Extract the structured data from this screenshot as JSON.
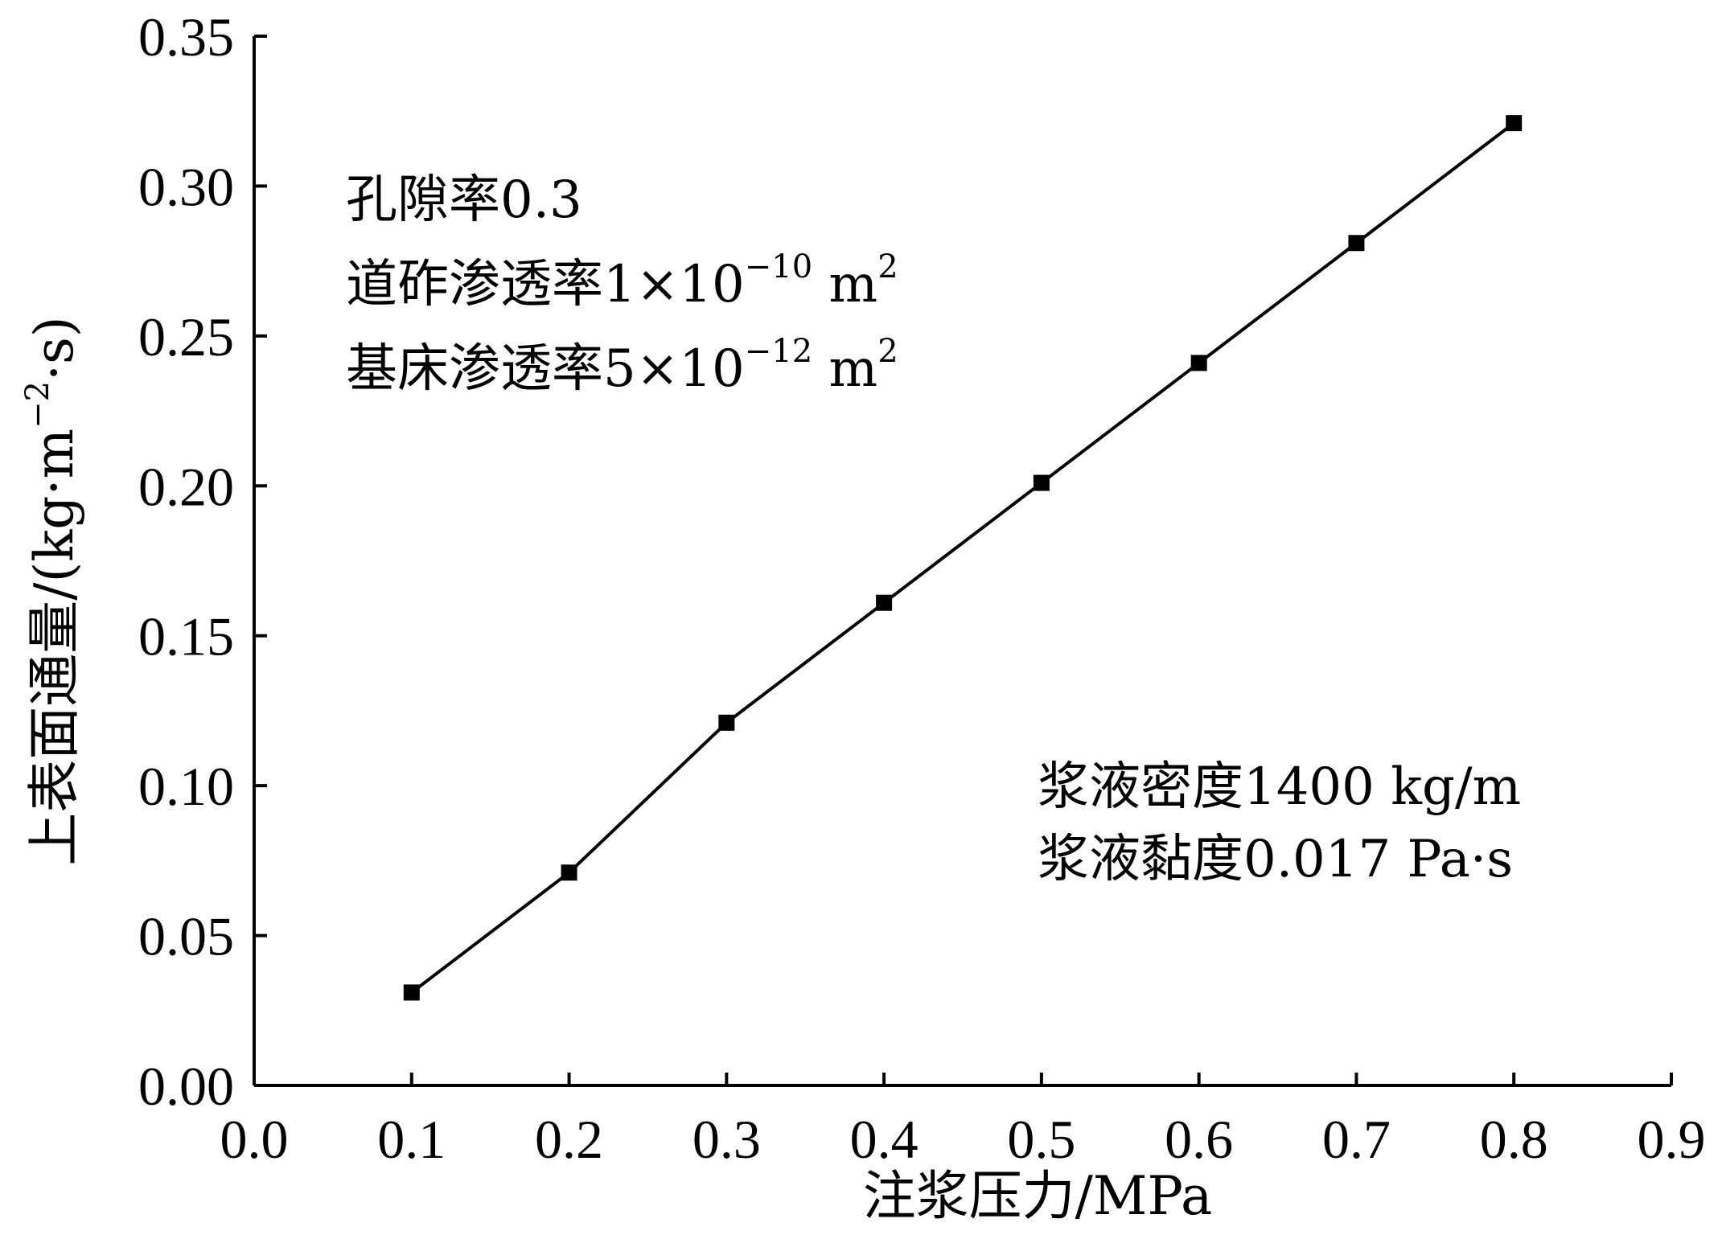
{
  "chart_data": {
    "type": "line",
    "xlabel": "注浆压力/MPa",
    "ylabel": {
      "prefix": "上表面通量/(kg·m",
      "exponent": "−2",
      "suffix": "·s)"
    },
    "xlim": [
      0.0,
      0.9
    ],
    "ylim": [
      0.0,
      0.35
    ],
    "x_ticks": [
      "0.0",
      "0.1",
      "0.2",
      "0.3",
      "0.4",
      "0.5",
      "0.6",
      "0.7",
      "0.8",
      "0.9"
    ],
    "y_ticks": [
      "0.00",
      "0.05",
      "0.10",
      "0.15",
      "0.20",
      "0.25",
      "0.30",
      "0.35"
    ],
    "grid": false,
    "legend": "none",
    "series": [
      {
        "marker": "square",
        "color": "#000000",
        "x": [
          0.1,
          0.2,
          0.3,
          0.4,
          0.5,
          0.6,
          0.7,
          0.8
        ],
        "y": [
          0.031,
          0.071,
          0.121,
          0.161,
          0.201,
          0.241,
          0.281,
          0.321
        ]
      }
    ],
    "annotations_left": [
      {
        "text": "孔隙率0.3"
      },
      {
        "text": "道砟渗透率1×10",
        "exponent": "−10",
        "unit": " m",
        "unit_exponent": "2"
      },
      {
        "text": "基床渗透率5×10",
        "exponent": "−12",
        "unit": " m",
        "unit_exponent": "2"
      }
    ],
    "annotations_right": [
      {
        "text": "浆液密度1400 kg/m"
      },
      {
        "text": "浆液黏度0.017 Pa·s"
      }
    ]
  }
}
